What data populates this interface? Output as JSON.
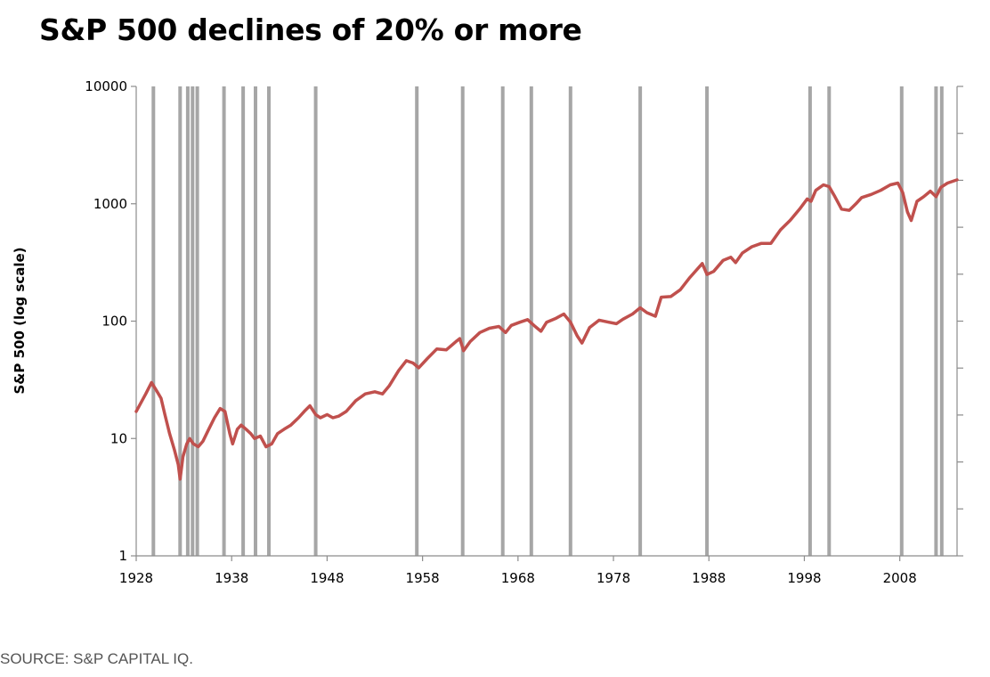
{
  "chart_data": {
    "type": "line",
    "title": "S&P 500 declines of 20% or more",
    "ylabel": "S&P 500 (log scale)",
    "xlabel": "",
    "y_scale": "log",
    "ylim": [
      1,
      10000
    ],
    "xlim": [
      1928,
      2014
    ],
    "y_ticks": [
      {
        "value": 1,
        "label": "1"
      },
      {
        "value": 10,
        "label": "10"
      },
      {
        "value": 100,
        "label": "100"
      },
      {
        "value": 1000,
        "label": "1000"
      },
      {
        "value": 10000,
        "label": "10000"
      }
    ],
    "x_ticks": [
      {
        "value": 1928,
        "label": "1928"
      },
      {
        "value": 1938,
        "label": "1938"
      },
      {
        "value": 1948,
        "label": "1948"
      },
      {
        "value": 1958,
        "label": "1958"
      },
      {
        "value": 1968,
        "label": "1968"
      },
      {
        "value": 1978,
        "label": "1978"
      },
      {
        "value": 1988,
        "label": "1988"
      },
      {
        "value": 1998,
        "label": "1998"
      },
      {
        "value": 2008,
        "label": "2008"
      }
    ],
    "grid": false,
    "line_color": "#c0504d",
    "bar_color": "#a6a6a6",
    "decline_markers": [
      1929.8,
      1932.6,
      1933.4,
      1933.9,
      1934.4,
      1937.2,
      1939.2,
      1940.5,
      1941.9,
      1946.8,
      1957.4,
      1962.2,
      1966.4,
      1969.4,
      1973.5,
      1980.8,
      1987.8,
      1998.6,
      2000.6,
      2008.2,
      2011.8,
      2012.4
    ],
    "series": [
      {
        "x": [
          1928.0,
          1929.0,
          1929.6,
          1930.2,
          1930.6,
          1931.0,
          1931.5,
          1932.0,
          1932.4,
          1932.6,
          1932.9,
          1933.3,
          1933.6,
          1934.0,
          1934.5,
          1935.0,
          1935.6,
          1936.2,
          1936.8,
          1937.3,
          1937.8,
          1938.1,
          1938.6,
          1939.0,
          1939.5,
          1940.0,
          1940.4,
          1941.0,
          1941.6,
          1942.2,
          1942.8,
          1943.5,
          1944.2,
          1945.0,
          1945.6,
          1946.2,
          1946.8,
          1947.3,
          1948.0,
          1948.6,
          1949.2,
          1950.0,
          1951.0,
          1952.0,
          1953.0,
          1953.8,
          1954.5,
          1955.5,
          1956.3,
          1957.0,
          1957.6,
          1958.5,
          1959.5,
          1960.5,
          1961.5,
          1961.9,
          1962.3,
          1963.0,
          1964.0,
          1965.0,
          1966.0,
          1966.7,
          1967.3,
          1968.2,
          1969.0,
          1969.8,
          1970.4,
          1971.0,
          1972.0,
          1972.8,
          1973.5,
          1974.2,
          1974.7,
          1975.5,
          1976.5,
          1977.5,
          1978.3,
          1979.0,
          1980.0,
          1980.8,
          1981.5,
          1982.4,
          1983.0,
          1984.0,
          1985.0,
          1986.0,
          1987.3,
          1987.8,
          1988.5,
          1989.5,
          1990.3,
          1990.8,
          1991.5,
          1992.5,
          1993.5,
          1994.5,
          1995.5,
          1996.5,
          1997.5,
          1998.3,
          1998.7,
          1999.2,
          2000.0,
          2000.6,
          2001.2,
          2001.9,
          2002.7,
          2003.4,
          2004.0,
          2005.0,
          2006.0,
          2007.0,
          2007.8,
          2008.3,
          2008.8,
          2009.2,
          2009.8,
          2010.5,
          2011.2,
          2011.8,
          2012.3,
          2013.0,
          2014.0
        ],
        "y": [
          17,
          24,
          30,
          25,
          22,
          16,
          11,
          8,
          6,
          4.5,
          7,
          9,
          10,
          9,
          8.5,
          9.5,
          12,
          15,
          18,
          17,
          11,
          9,
          12,
          13,
          12,
          11,
          10,
          10.5,
          8.5,
          9,
          11,
          12,
          13,
          15,
          17,
          19,
          16,
          15,
          16,
          15,
          15.5,
          17,
          21,
          24,
          25,
          24,
          28,
          38,
          46,
          44,
          40,
          48,
          58,
          57,
          67,
          71,
          56,
          67,
          80,
          87,
          90,
          80,
          92,
          98,
          103,
          90,
          82,
          98,
          106,
          115,
          98,
          75,
          65,
          88,
          102,
          98,
          95,
          104,
          115,
          130,
          118,
          110,
          160,
          162,
          185,
          235,
          310,
          250,
          265,
          330,
          350,
          315,
          380,
          430,
          460,
          460,
          600,
          720,
          900,
          1100,
          1050,
          1300,
          1450,
          1400,
          1150,
          900,
          880,
          1000,
          1130,
          1200,
          1300,
          1450,
          1500,
          1250,
          850,
          720,
          1050,
          1150,
          1280,
          1150,
          1380,
          1500,
          1600
        ]
      }
    ]
  },
  "source": "SOURCE: S&P CAPITAL IQ."
}
